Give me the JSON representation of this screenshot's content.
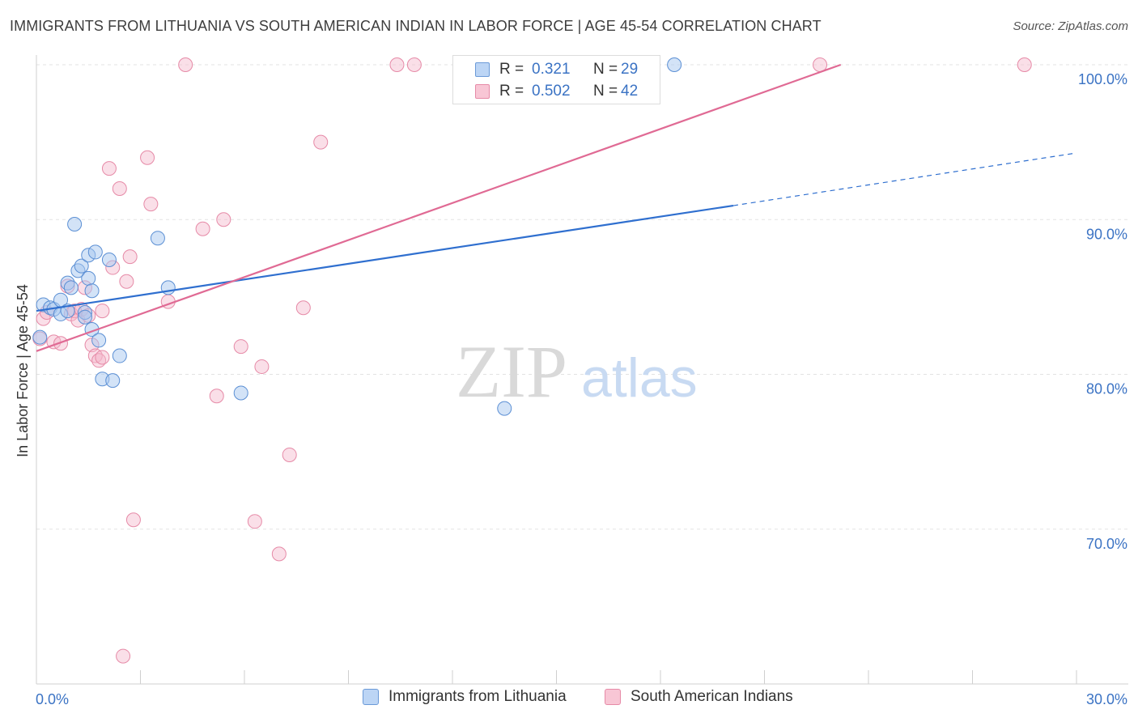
{
  "header": {
    "title": "IMMIGRANTS FROM LITHUANIA VS SOUTH AMERICAN INDIAN IN LABOR FORCE | AGE 45-54 CORRELATION CHART",
    "source": "Source: ZipAtlas.com"
  },
  "watermark": {
    "part1": "ZIP",
    "part2": "atlas"
  },
  "stats_legend": {
    "rows": [
      {
        "r_label": "R =",
        "r_value": "0.321",
        "n_label": "N =",
        "n_value": "29",
        "color": "#a8c8f0"
      },
      {
        "r_label": "R =",
        "r_value": "0.502",
        "n_label": "N =",
        "n_value": "42",
        "color": "#f5b8cb"
      }
    ]
  },
  "bottom_legend": {
    "series1": "Immigrants from Lithuania",
    "series2": "South American Indians"
  },
  "chart_data": {
    "type": "scatter",
    "title": "IMMIGRANTS FROM LITHUANIA VS SOUTH AMERICAN INDIAN IN LABOR FORCE | AGE 45-54 CORRELATION CHART",
    "xlabel": "",
    "ylabel": "In Labor Force | Age 45-54",
    "xlim": [
      0,
      30
    ],
    "ylim": [
      60,
      100
    ],
    "x_tick_labels": [
      "0.0%",
      "30.0%"
    ],
    "y_ticks": [
      70,
      80,
      90,
      100
    ],
    "y_tick_labels": [
      "70.0%",
      "80.0%",
      "90.0%",
      "100.0%"
    ],
    "grid": true,
    "colors": {
      "blue_fill": "#a8c8f0",
      "blue_stroke": "#5b8fd4",
      "blue_line": "#2f6fcf",
      "pink_fill": "#f5b8cb",
      "pink_stroke": "#e68aa7",
      "pink_line": "#e06a94",
      "axis_label": "#3b73c4"
    },
    "series": [
      {
        "name": "Immigrants from Lithuania",
        "r": 0.321,
        "n": 29,
        "trend": {
          "x0": 0.0,
          "y0": 84.1,
          "x1": 20.1,
          "y1": 90.9,
          "dash_x1": 30.0,
          "dash_y1": 94.3
        },
        "points": [
          [
            0.1,
            82.4
          ],
          [
            0.2,
            84.5
          ],
          [
            0.4,
            84.3
          ],
          [
            0.5,
            84.2
          ],
          [
            0.7,
            84.8
          ],
          [
            0.9,
            85.9
          ],
          [
            0.7,
            83.9
          ],
          [
            0.9,
            84.1
          ],
          [
            1.0,
            85.6
          ],
          [
            1.1,
            89.7
          ],
          [
            1.2,
            86.7
          ],
          [
            1.3,
            87.0
          ],
          [
            1.4,
            84.0
          ],
          [
            1.4,
            83.7
          ],
          [
            1.5,
            86.2
          ],
          [
            1.5,
            87.7
          ],
          [
            1.6,
            82.9
          ],
          [
            1.6,
            85.4
          ],
          [
            1.7,
            87.9
          ],
          [
            1.8,
            82.2
          ],
          [
            1.9,
            79.7
          ],
          [
            2.1,
            87.4
          ],
          [
            2.2,
            79.6
          ],
          [
            2.4,
            81.2
          ],
          [
            3.5,
            88.8
          ],
          [
            3.8,
            85.6
          ],
          [
            5.9,
            78.8
          ],
          [
            13.5,
            77.8
          ],
          [
            18.4,
            100.0
          ]
        ]
      },
      {
        "name": "South American Indians",
        "r": 0.502,
        "n": 42,
        "trend": {
          "x0": 0.0,
          "y0": 81.5,
          "x1": 23.2,
          "y1": 100.0
        },
        "points": [
          [
            0.1,
            82.3
          ],
          [
            0.2,
            83.6
          ],
          [
            0.3,
            84.0
          ],
          [
            0.5,
            82.1
          ],
          [
            0.7,
            82.0
          ],
          [
            0.9,
            85.7
          ],
          [
            1.0,
            83.9
          ],
          [
            1.1,
            84.1
          ],
          [
            1.2,
            83.5
          ],
          [
            1.3,
            84.2
          ],
          [
            1.4,
            85.6
          ],
          [
            1.5,
            83.8
          ],
          [
            1.6,
            81.9
          ],
          [
            1.7,
            81.2
          ],
          [
            1.8,
            80.9
          ],
          [
            1.9,
            81.1
          ],
          [
            1.9,
            84.1
          ],
          [
            2.1,
            93.3
          ],
          [
            2.2,
            86.9
          ],
          [
            2.4,
            92.0
          ],
          [
            2.6,
            86.0
          ],
          [
            2.7,
            87.6
          ],
          [
            2.8,
            70.6
          ],
          [
            3.2,
            94.0
          ],
          [
            3.3,
            91.0
          ],
          [
            3.8,
            84.7
          ],
          [
            4.3,
            100.0
          ],
          [
            4.8,
            89.4
          ],
          [
            5.2,
            78.6
          ],
          [
            5.4,
            90.0
          ],
          [
            5.9,
            81.8
          ],
          [
            6.3,
            70.5
          ],
          [
            6.5,
            80.5
          ],
          [
            7.0,
            68.4
          ],
          [
            7.3,
            74.8
          ],
          [
            7.7,
            84.3
          ],
          [
            8.2,
            95.0
          ],
          [
            10.4,
            100.0
          ],
          [
            10.9,
            100.0
          ],
          [
            22.6,
            100.0
          ],
          [
            28.5,
            100.0
          ],
          [
            2.5,
            61.8
          ]
        ]
      }
    ]
  }
}
